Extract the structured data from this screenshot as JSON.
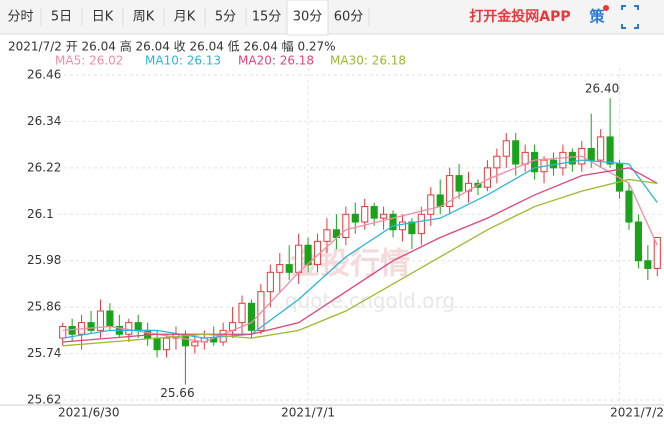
{
  "tabs": [
    "分时",
    "5日",
    "日K",
    "周K",
    "月K",
    "5分",
    "15分",
    "30分",
    "60分"
  ],
  "active_tab": 7,
  "app_link": "打开金投网APP",
  "strategy_icon": "策",
  "chart_data": {
    "type": "candlestick",
    "info": "2021/7/2  开 26.04  高 26.04  收 26.04  低 26.04  幅 0.27%",
    "watermark": [
      "金投行情",
      "quote.cngold.org"
    ],
    "rise_color": "#e8383d",
    "fall_color": "#1aa31a",
    "ylim": [
      25.62,
      26.46
    ],
    "yticks": [
      25.62,
      25.74,
      25.86,
      25.98,
      26.1,
      26.22,
      26.34,
      26.46
    ],
    "xlim": [
      -0.5,
      63.5
    ],
    "xticks": [
      {
        "value": 0,
        "label": "2021/6/30"
      },
      {
        "value": 26,
        "label": "2021/7/1"
      },
      {
        "value": 59,
        "label": "2021/7/2"
      }
    ],
    "grid": true,
    "open": [
      25.78,
      25.81,
      25.79,
      25.82,
      25.8,
      25.85,
      25.81,
      25.79,
      25.82,
      25.8,
      25.78,
      25.75,
      25.78,
      25.79,
      25.76,
      25.77,
      25.78,
      25.77,
      25.8,
      25.82,
      25.87,
      25.8,
      25.9,
      25.95,
      25.97,
      25.95,
      26.02,
      25.97,
      26.03,
      26.06,
      26.04,
      26.1,
      26.08,
      26.12,
      26.09,
      26.1,
      26.06,
      26.08,
      26.05,
      26.1,
      26.15,
      26.12,
      26.2,
      26.16,
      26.18,
      26.17,
      26.22,
      26.25,
      26.29,
      26.23,
      26.26,
      26.21,
      26.24,
      26.22,
      26.26,
      26.23,
      26.27,
      26.24,
      26.3,
      26.23,
      26.16,
      26.08,
      25.98,
      25.96
    ],
    "high": [
      25.82,
      25.83,
      25.84,
      25.85,
      25.88,
      25.87,
      25.84,
      25.83,
      25.84,
      25.82,
      25.8,
      25.79,
      25.81,
      25.8,
      25.79,
      25.8,
      25.81,
      25.82,
      25.86,
      25.89,
      25.88,
      25.92,
      25.97,
      26.0,
      26.02,
      26.05,
      26.04,
      26.05,
      26.09,
      26.1,
      26.12,
      26.13,
      26.14,
      26.13,
      26.12,
      26.11,
      26.1,
      26.09,
      26.12,
      26.17,
      26.19,
      26.22,
      26.23,
      26.21,
      26.19,
      26.24,
      26.27,
      26.31,
      26.31,
      26.28,
      26.28,
      26.25,
      26.26,
      26.28,
      26.27,
      26.29,
      26.36,
      26.32,
      26.4,
      26.24,
      26.18,
      26.1,
      26.02,
      26.04
    ],
    "low": [
      25.76,
      25.77,
      25.75,
      25.79,
      25.78,
      25.8,
      25.78,
      25.77,
      25.78,
      25.76,
      25.73,
      25.73,
      25.75,
      25.66,
      25.74,
      25.75,
      25.76,
      25.76,
      25.78,
      25.79,
      25.78,
      25.79,
      25.86,
      25.9,
      25.93,
      25.92,
      25.95,
      25.95,
      26.0,
      26.01,
      26.02,
      26.05,
      26.06,
      26.07,
      26.06,
      26.04,
      26.03,
      26.01,
      26.02,
      26.07,
      26.1,
      26.1,
      26.14,
      26.13,
      26.15,
      26.16,
      26.18,
      26.22,
      26.2,
      26.21,
      26.19,
      26.18,
      26.2,
      26.2,
      26.21,
      26.21,
      26.22,
      26.22,
      26.22,
      26.14,
      26.06,
      25.96,
      25.93,
      25.94
    ],
    "close": [
      25.81,
      25.79,
      25.82,
      25.8,
      25.85,
      25.81,
      25.79,
      25.82,
      25.8,
      25.78,
      25.75,
      25.78,
      25.79,
      25.76,
      25.77,
      25.78,
      25.77,
      25.8,
      25.82,
      25.87,
      25.8,
      25.9,
      25.95,
      25.97,
      25.95,
      26.02,
      25.97,
      26.03,
      26.06,
      26.04,
      26.1,
      26.08,
      26.12,
      26.09,
      26.1,
      26.06,
      26.08,
      26.05,
      26.1,
      26.15,
      26.12,
      26.2,
      26.16,
      26.18,
      26.17,
      26.22,
      26.25,
      26.29,
      26.23,
      26.26,
      26.21,
      26.24,
      26.22,
      26.26,
      26.23,
      26.27,
      26.24,
      26.3,
      26.23,
      26.16,
      26.08,
      25.98,
      25.96,
      26.04
    ],
    "annotations": [
      {
        "x": 58,
        "value": 26.4,
        "label": "26.40"
      },
      {
        "x": 13,
        "value": 25.66,
        "label": "25.66"
      }
    ],
    "series": [
      {
        "name": "MA5: 26.02",
        "color": "#f08ca6",
        "x": [
          0,
          5,
          10,
          15,
          20,
          25,
          30,
          35,
          40,
          45,
          50,
          55,
          60,
          63
        ],
        "values": [
          25.8,
          25.81,
          25.79,
          25.77,
          25.82,
          25.95,
          26.06,
          26.09,
          26.12,
          26.19,
          26.24,
          26.25,
          26.18,
          26.02
        ]
      },
      {
        "name": "MA10: 26.13",
        "color": "#2bb5d8",
        "x": [
          0,
          5,
          10,
          15,
          20,
          25,
          30,
          35,
          40,
          45,
          50,
          55,
          60,
          63
        ],
        "values": [
          25.78,
          25.8,
          25.8,
          25.78,
          25.79,
          25.88,
          25.99,
          26.07,
          26.09,
          26.15,
          26.22,
          26.24,
          26.23,
          26.13
        ]
      },
      {
        "name": "MA20: 26.18",
        "color": "#e0457b",
        "x": [
          0,
          5,
          10,
          15,
          20,
          25,
          30,
          35,
          40,
          45,
          50,
          55,
          60,
          63
        ],
        "values": [
          25.77,
          25.78,
          25.79,
          25.79,
          25.79,
          25.82,
          25.9,
          25.98,
          26.04,
          26.09,
          26.15,
          26.2,
          26.22,
          26.18
        ]
      },
      {
        "name": "MA30: 26.18",
        "color": "#9bbb2c",
        "x": [
          0,
          5,
          10,
          15,
          20,
          25,
          30,
          35,
          40,
          45,
          50,
          55,
          60,
          63
        ],
        "values": [
          25.76,
          25.77,
          25.78,
          25.79,
          25.78,
          25.8,
          25.85,
          25.92,
          25.99,
          26.06,
          26.12,
          26.16,
          26.19,
          26.18
        ]
      }
    ]
  }
}
